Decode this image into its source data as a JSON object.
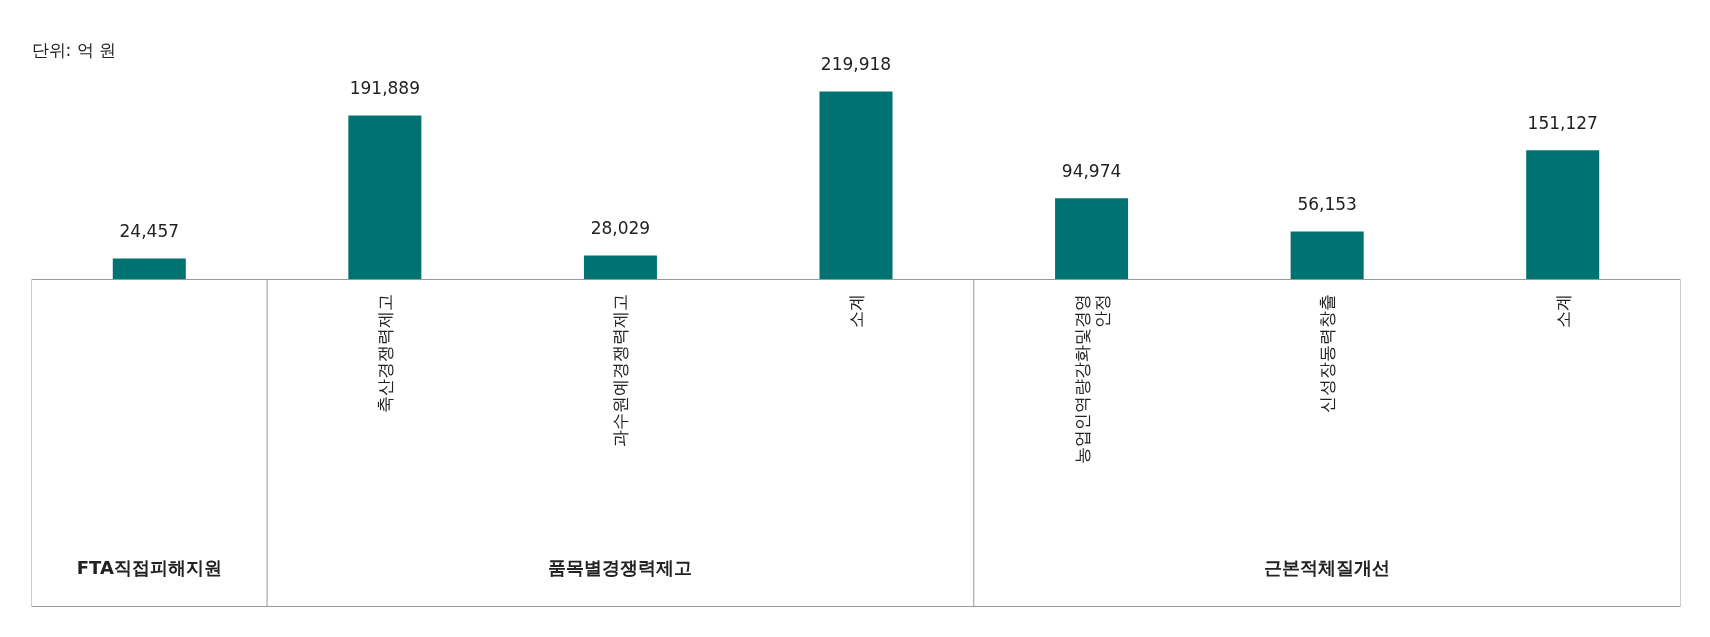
{
  "chart_data": {
    "type": "bar",
    "ylabel": "단위: 억 원",
    "categories": [
      null,
      "축산경쟁력제고",
      "과수원예경쟁력제고",
      "소계",
      "농업인역량강화및경영 안정",
      "신성장동력창출",
      "소계"
    ],
    "values": [
      24457,
      191889,
      28029,
      219918,
      94974,
      56153,
      151127
    ],
    "value_labels": [
      "24,457",
      "191,889",
      "28,029",
      "219,918",
      "94,974",
      "56,153",
      "151,127"
    ],
    "color": "#007272",
    "annotations": [
      "FTA직접피해지원",
      "품목별경쟁력제고",
      "근본적체질개선"
    ]
  }
}
